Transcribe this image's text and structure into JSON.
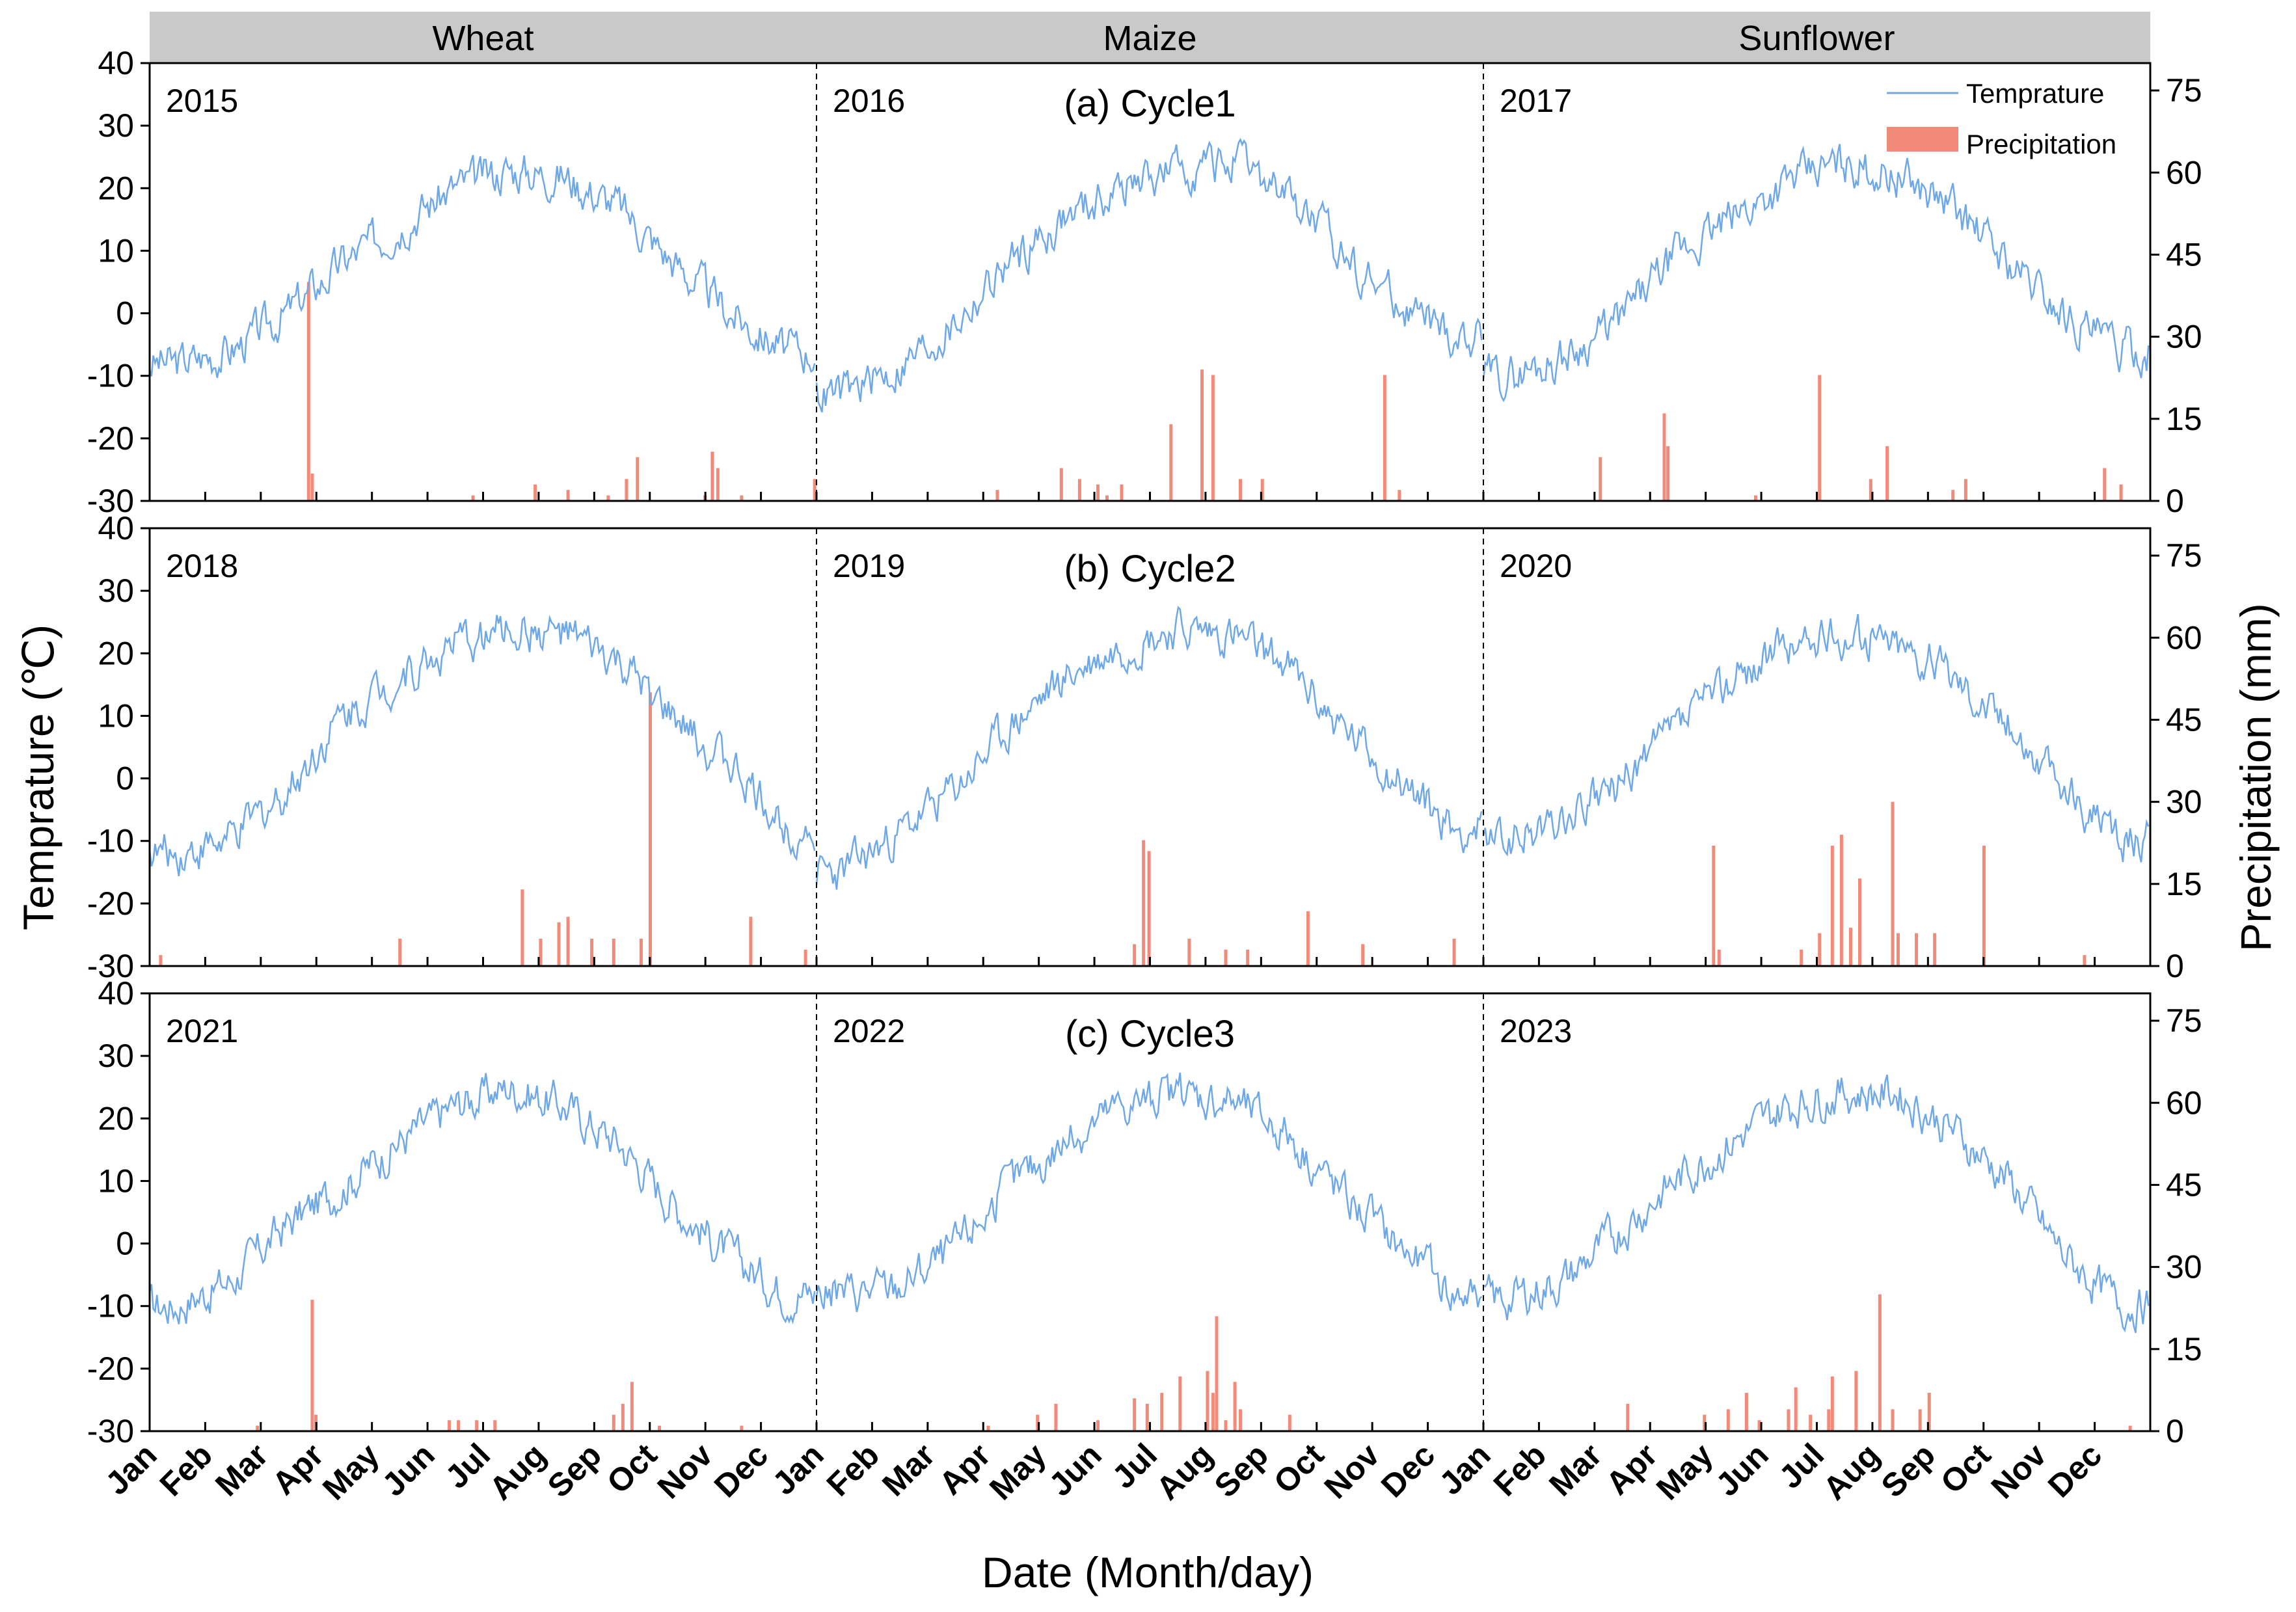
{
  "crops": [
    "Wheat",
    "Maize",
    "Sunflower"
  ],
  "colors": {
    "temperature": "#6FA8E6",
    "precipitation": "#F28A7A",
    "header_bg": "#C9C9C9",
    "axis": "#000000"
  },
  "legend": {
    "temperature": "Temprature",
    "precipitation": "Precipitation"
  },
  "chart_data": {
    "type": "line+bar",
    "xlabel": "Date (Month/day)",
    "ylabel_left": "Temprature (℃)",
    "ylabel_right": "Precipitation (mm)",
    "ylim_left": [
      -30,
      40
    ],
    "ylim_right": [
      0,
      80
    ],
    "yticks_left": [
      -30,
      -20,
      -10,
      0,
      10,
      20,
      30,
      40
    ],
    "yticks_right": [
      0,
      15,
      30,
      45,
      60,
      75
    ],
    "month_labels": [
      "Jan",
      "Feb",
      "Mar",
      "Apr",
      "May",
      "Jun",
      "Jul",
      "Aug",
      "Sep",
      "Oct",
      "Nov",
      "Dec"
    ],
    "panels": [
      {
        "cycle_label": "(a) Cycle1",
        "years": [
          {
            "year": "2015",
            "crop": "Wheat",
            "temp_monthly": [
              -8,
              -6,
              0,
              8,
              14,
              20,
              23,
              22,
              17,
              8,
              0,
              -6
            ],
            "precip": [
              [
                88,
                40
              ],
              [
                90,
                5
              ],
              [
                178,
                1
              ],
              [
                212,
                3
              ],
              [
                230,
                2
              ],
              [
                252,
                1
              ],
              [
                262,
                4
              ],
              [
                268,
                8
              ],
              [
                305,
                1
              ],
              [
                309,
                9
              ],
              [
                312,
                6
              ],
              [
                325,
                1
              ],
              [
                365,
                4
              ]
            ]
          },
          {
            "year": "2016",
            "crop": "Maize",
            "temp_monthly": [
              -13,
              -9,
              -2,
              8,
              15,
              20,
              23,
              24,
              19,
              10,
              2,
              -4
            ],
            "precip": [
              [
                100,
                2
              ],
              [
                135,
                6
              ],
              [
                145,
                4
              ],
              [
                155,
                3
              ],
              [
                160,
                1
              ],
              [
                168,
                3
              ],
              [
                195,
                14
              ],
              [
                212,
                24
              ],
              [
                218,
                23
              ],
              [
                233,
                4
              ],
              [
                245,
                4
              ],
              [
                312,
                23
              ],
              [
                320,
                2
              ]
            ]
          },
          {
            "year": "2017",
            "crop": "Sunflower",
            "temp_monthly": [
              -10,
              -7,
              -1,
              9,
              15,
              21,
              24,
              22,
              17,
              8,
              0,
              -6
            ],
            "precip": [
              [
                65,
                8
              ],
              [
                100,
                16
              ],
              [
                102,
                10
              ],
              [
                150,
                1
              ],
              [
                185,
                23
              ],
              [
                213,
                4
              ],
              [
                222,
                10
              ],
              [
                258,
                2
              ],
              [
                265,
                4
              ],
              [
                341,
                6
              ],
              [
                350,
                3
              ]
            ]
          }
        ]
      },
      {
        "cycle_label": "(b) Cycle2",
        "years": [
          {
            "year": "2018",
            "crop": "Wheat",
            "temp_monthly": [
              -12,
              -10,
              -2,
              10,
              16,
              21,
              24,
              23,
              18,
              9,
              2,
              -8
            ],
            "precip": [
              [
                7,
                2
              ],
              [
                138,
                5
              ],
              [
                205,
                14
              ],
              [
                215,
                5
              ],
              [
                225,
                8
              ],
              [
                230,
                9
              ],
              [
                243,
                5
              ],
              [
                255,
                5
              ],
              [
                270,
                5
              ],
              [
                275,
                50
              ],
              [
                330,
                9
              ],
              [
                360,
                3
              ]
            ]
          },
          {
            "year": "2019",
            "crop": "Maize",
            "temp_monthly": [
              -15,
              -9,
              -2,
              8,
              16,
              21,
              24,
              23,
              18,
              8,
              0,
              -8
            ],
            "precip": [
              [
                175,
                4
              ],
              [
                180,
                23
              ],
              [
                183,
                21
              ],
              [
                205,
                5
              ],
              [
                225,
                3
              ],
              [
                237,
                3
              ],
              [
                270,
                10
              ],
              [
                300,
                4
              ],
              [
                350,
                5
              ]
            ]
          },
          {
            "year": "2020",
            "crop": "Sunflower",
            "temp_monthly": [
              -10,
              -7,
              -1,
              8,
              16,
              21,
              23,
              22,
              17,
              9,
              -2,
              -10
            ],
            "precip": [
              [
                127,
                22
              ],
              [
                130,
                3
              ],
              [
                175,
                3
              ],
              [
                185,
                6
              ],
              [
                192,
                22
              ],
              [
                197,
                24
              ],
              [
                202,
                7
              ],
              [
                207,
                16
              ],
              [
                225,
                30
              ],
              [
                228,
                6
              ],
              [
                238,
                6
              ],
              [
                248,
                6
              ],
              [
                275,
                22
              ],
              [
                330,
                2
              ]
            ]
          }
        ]
      },
      {
        "cycle_label": "(c) Cycle3",
        "years": [
          {
            "year": "2021",
            "crop": "Wheat",
            "temp_monthly": [
              -10,
              -6,
              3,
              9,
              16,
              22,
              25,
              22,
              16,
              6,
              -2,
              -8
            ],
            "precip": [
              [
                60,
                1
              ],
              [
                90,
                24
              ],
              [
                92,
                3
              ],
              [
                165,
                2
              ],
              [
                170,
                2
              ],
              [
                180,
                2
              ],
              [
                190,
                2
              ],
              [
                255,
                3
              ],
              [
                260,
                5
              ],
              [
                265,
                9
              ],
              [
                280,
                1
              ],
              [
                325,
                1
              ]
            ]
          },
          {
            "year": "2022",
            "crop": "Maize",
            "temp_monthly": [
              -8,
              -7,
              -1,
              9,
              16,
              22,
              24,
              23,
              18,
              8,
              0,
              -8
            ],
            "precip": [
              [
                95,
                1
              ],
              [
                122,
                3
              ],
              [
                132,
                5
              ],
              [
                155,
                2
              ],
              [
                175,
                6
              ],
              [
                182,
                5
              ],
              [
                190,
                7
              ],
              [
                200,
                10
              ],
              [
                215,
                11
              ],
              [
                218,
                7
              ],
              [
                220,
                21
              ],
              [
                225,
                2
              ],
              [
                230,
                9
              ],
              [
                233,
                4
              ],
              [
                260,
                3
              ]
            ]
          },
          {
            "year": "2023",
            "crop": "Sunflower",
            "temp_monthly": [
              -9,
              -6,
              2,
              10,
              16,
              22,
              24,
              24,
              18,
              10,
              -2,
              -10
            ],
            "precip": [
              [
                80,
                5
              ],
              [
                122,
                3
              ],
              [
                135,
                4
              ],
              [
                145,
                7
              ],
              [
                152,
                2
              ],
              [
                168,
                4
              ],
              [
                172,
                8
              ],
              [
                180,
                3
              ],
              [
                190,
                4
              ],
              [
                192,
                10
              ],
              [
                205,
                11
              ],
              [
                218,
                25
              ],
              [
                225,
                4
              ],
              [
                240,
                4
              ],
              [
                245,
                7
              ],
              [
                355,
                1
              ]
            ]
          }
        ]
      }
    ]
  }
}
